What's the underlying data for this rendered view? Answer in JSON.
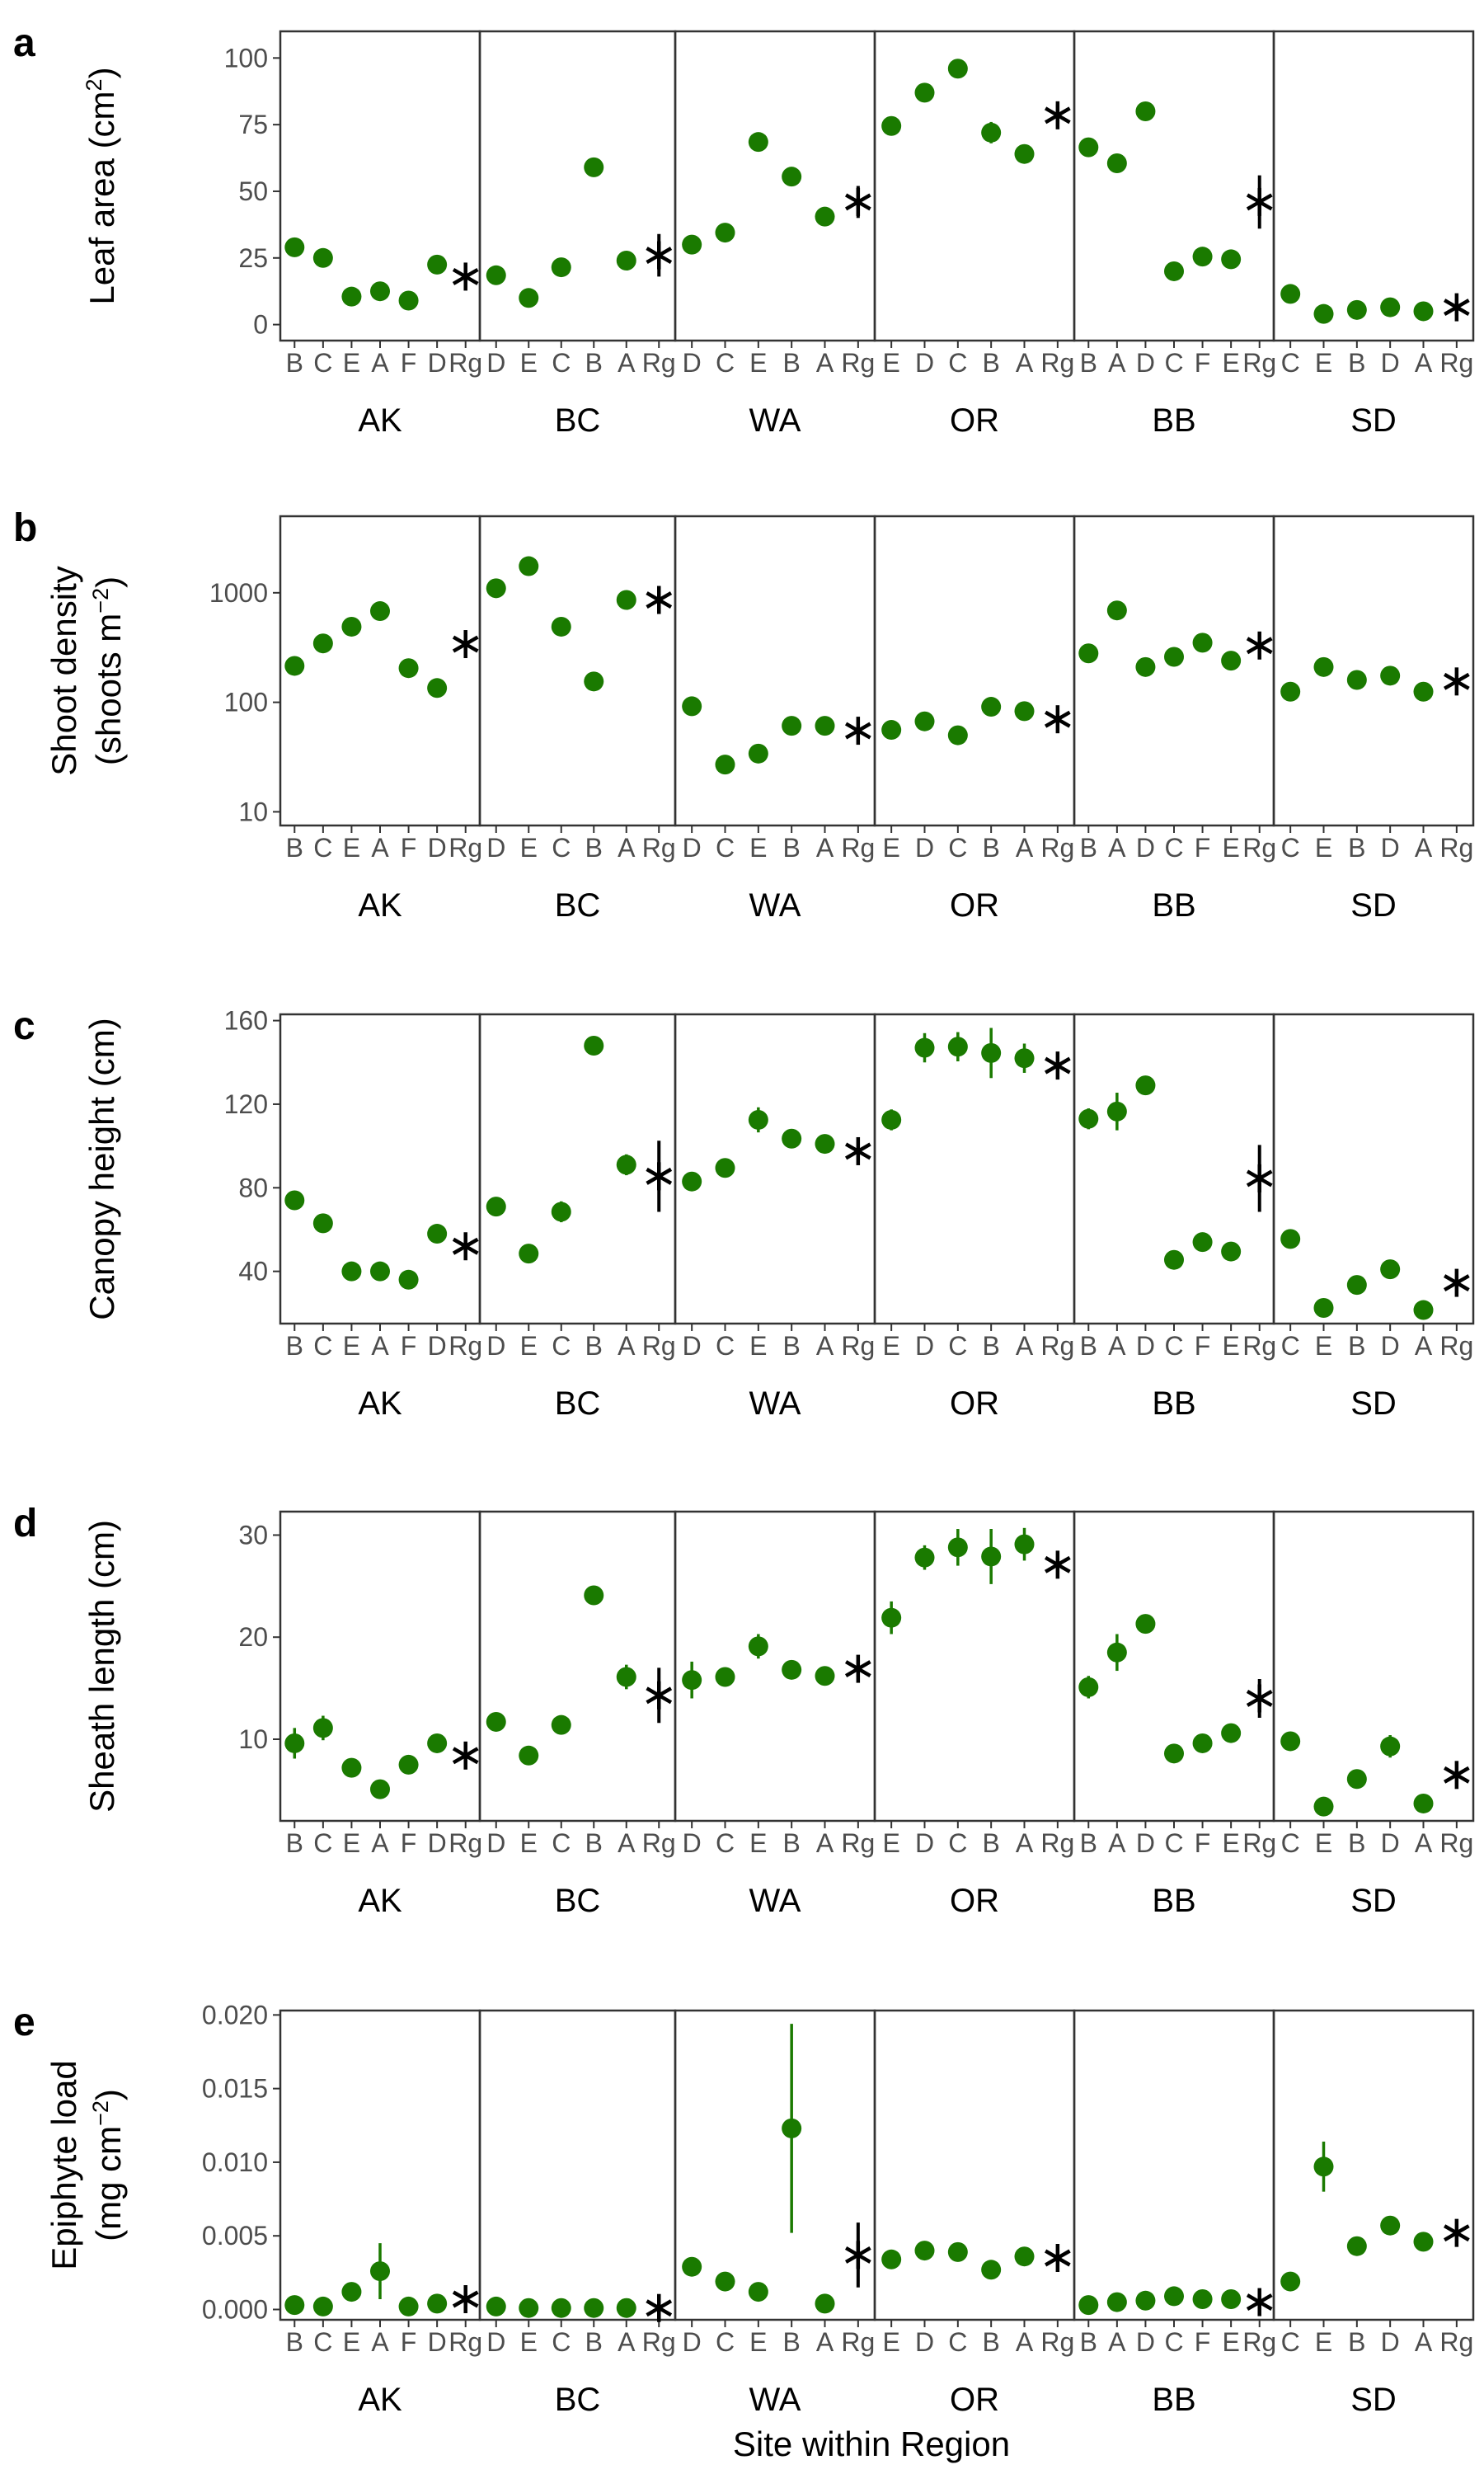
{
  "figure": {
    "xlabel": "Site within Region",
    "point_color": "#1a7a00",
    "regional_color": "#000000",
    "regions": [
      {
        "name": "AK",
        "sites": [
          "B",
          "C",
          "E",
          "A",
          "F",
          "D",
          "Rg"
        ]
      },
      {
        "name": "BC",
        "sites": [
          "D",
          "E",
          "C",
          "B",
          "A",
          "Rg"
        ]
      },
      {
        "name": "WA",
        "sites": [
          "D",
          "C",
          "E",
          "B",
          "A",
          "Rg"
        ]
      },
      {
        "name": "OR",
        "sites": [
          "E",
          "D",
          "C",
          "B",
          "A",
          "Rg"
        ]
      },
      {
        "name": "BB",
        "sites": [
          "B",
          "A",
          "D",
          "C",
          "F",
          "E",
          "Rg"
        ]
      },
      {
        "name": "SD",
        "sites": [
          "C",
          "E",
          "B",
          "D",
          "A",
          "Rg"
        ]
      }
    ]
  },
  "chart_data": [
    {
      "type": "scatter",
      "panel": "a",
      "ylabel": "Leaf area (cm²)",
      "ylabel_parts": [
        "Leaf area (cm",
        "2",
        ")"
      ],
      "yscale": "linear",
      "ylim": [
        -6,
        110
      ],
      "yticks": [
        0,
        25,
        50,
        75,
        100
      ],
      "ytick_labels": [
        "0",
        "25",
        "50",
        "75",
        "100"
      ],
      "values": [
        [
          [
            29,
            0
          ],
          [
            25,
            0
          ],
          [
            10.5,
            0
          ],
          [
            12.5,
            0
          ],
          [
            9,
            0
          ],
          [
            22.5,
            0
          ],
          [
            18,
            4
          ]
        ],
        [
          [
            18.5,
            0
          ],
          [
            10,
            0
          ],
          [
            21.5,
            0
          ],
          [
            59,
            0
          ],
          [
            24,
            0
          ],
          [
            26,
            8
          ]
        ],
        [
          [
            30,
            0
          ],
          [
            34.5,
            0
          ],
          [
            68.5,
            0
          ],
          [
            55.5,
            0
          ],
          [
            40.5,
            0
          ],
          [
            46,
            6
          ]
        ],
        [
          [
            74.5,
            0
          ],
          [
            87,
            0
          ],
          [
            96,
            0
          ],
          [
            72,
            4
          ],
          [
            64,
            0
          ],
          [
            78.5,
            4
          ]
        ],
        [
          [
            66.5,
            0
          ],
          [
            60.5,
            0
          ],
          [
            80,
            0
          ],
          [
            20,
            0
          ],
          [
            25.5,
            0
          ],
          [
            24.5,
            0
          ],
          [
            46,
            10
          ]
        ],
        [
          [
            11.5,
            0
          ],
          [
            4,
            0
          ],
          [
            5.5,
            0
          ],
          [
            6.5,
            0
          ],
          [
            5,
            0
          ],
          [
            6.5,
            3
          ]
        ]
      ]
    },
    {
      "type": "scatter",
      "panel": "b",
      "ylabel": "Shoot density (shoots m⁻²)",
      "ylabel_parts": [
        "(shoots m",
        "−2",
        ")"
      ],
      "ylabel_line1": "Shoot density",
      "yscale": "log",
      "ylim": [
        7.5,
        5000
      ],
      "yticks": [
        10,
        100,
        1000
      ],
      "ytick_labels": [
        "10",
        "100",
        "1000"
      ],
      "values": [
        [
          [
            215,
            0
          ],
          [
            345,
            0
          ],
          [
            490,
            0
          ],
          [
            680,
            0
          ],
          [
            205,
            0
          ],
          [
            135,
            0
          ],
          [
            340,
            0
          ]
        ],
        [
          [
            1100,
            0
          ],
          [
            1750,
            0
          ],
          [
            490,
            0
          ],
          [
            155,
            0
          ],
          [
            860,
            0
          ],
          [
            860,
            0
          ]
        ],
        [
          [
            92,
            0
          ],
          [
            27,
            0
          ],
          [
            34,
            0
          ],
          [
            61,
            0
          ],
          [
            61,
            0
          ],
          [
            55,
            0
          ]
        ],
        [
          [
            56,
            0
          ],
          [
            67,
            0
          ],
          [
            50,
            0
          ],
          [
            91,
            0
          ],
          [
            83,
            0
          ],
          [
            70,
            0
          ]
        ],
        [
          [
            280,
            0
          ],
          [
            690,
            0
          ],
          [
            210,
            0
          ],
          [
            260,
            0
          ],
          [
            350,
            0
          ],
          [
            240,
            0
          ],
          [
            330,
            0
          ]
        ],
        [
          [
            125,
            0
          ],
          [
            210,
            0
          ],
          [
            160,
            0
          ],
          [
            175,
            0
          ],
          [
            125,
            0
          ],
          [
            155,
            0
          ]
        ]
      ]
    },
    {
      "type": "scatter",
      "panel": "c",
      "ylabel": "Canopy height (cm)",
      "ylabel_parts": [
        "Canopy height (cm)"
      ],
      "yscale": "linear",
      "ylim": [
        15,
        163
      ],
      "yticks": [
        40,
        80,
        120,
        160
      ],
      "ytick_labels": [
        "40",
        "80",
        "120",
        "160"
      ],
      "values": [
        [
          [
            74,
            0
          ],
          [
            63,
            0
          ],
          [
            40,
            0
          ],
          [
            40,
            0
          ],
          [
            36,
            0
          ],
          [
            58,
            0
          ],
          [
            52,
            0
          ]
        ],
        [
          [
            71,
            0
          ],
          [
            48.5,
            0
          ],
          [
            68.5,
            5
          ],
          [
            148,
            0
          ],
          [
            91,
            5
          ],
          [
            85.5,
            17
          ]
        ],
        [
          [
            83,
            0
          ],
          [
            89.5,
            0
          ],
          [
            112.5,
            6
          ],
          [
            103.5,
            0
          ],
          [
            101,
            0
          ],
          [
            97.5,
            0
          ]
        ],
        [
          [
            112.5,
            5
          ],
          [
            147,
            7
          ],
          [
            147.5,
            7
          ],
          [
            144.5,
            12
          ],
          [
            142,
            7
          ],
          [
            138.5,
            0
          ]
        ],
        [
          [
            113,
            5
          ],
          [
            116.5,
            9
          ],
          [
            129,
            4
          ],
          [
            45.5,
            0
          ],
          [
            54,
            0
          ],
          [
            49.5,
            0
          ],
          [
            84.5,
            16
          ]
        ],
        [
          [
            55.5,
            0
          ],
          [
            22.5,
            0
          ],
          [
            33.5,
            0
          ],
          [
            41,
            0
          ],
          [
            21.5,
            0
          ],
          [
            34.5,
            0
          ]
        ]
      ]
    },
    {
      "type": "scatter",
      "panel": "d",
      "ylabel": "Sheath length (cm)",
      "ylabel_parts": [
        "Sheath length (cm)"
      ],
      "yscale": "linear",
      "ylim": [
        2,
        32.3
      ],
      "yticks": [
        10,
        20,
        30
      ],
      "ytick_labels": [
        "10",
        "20",
        "30"
      ],
      "values": [
        [
          [
            9.6,
            1.5
          ],
          [
            11.1,
            1.2
          ],
          [
            7.2,
            0
          ],
          [
            5.1,
            0
          ],
          [
            7.5,
            0
          ],
          [
            9.6,
            0
          ],
          [
            8.4,
            0
          ]
        ],
        [
          [
            11.7,
            0
          ],
          [
            8.4,
            0
          ],
          [
            11.4,
            0.8
          ],
          [
            24.1,
            0
          ],
          [
            16.1,
            1.2
          ],
          [
            14.3,
            2.7
          ]
        ],
        [
          [
            15.8,
            1.8
          ],
          [
            16.1,
            0
          ],
          [
            19.1,
            1.2
          ],
          [
            16.8,
            0.8
          ],
          [
            16.2,
            0
          ],
          [
            16.9,
            0.8
          ]
        ],
        [
          [
            21.9,
            1.6
          ],
          [
            27.8,
            1.2
          ],
          [
            28.8,
            1.8
          ],
          [
            27.9,
            2.7
          ],
          [
            29.1,
            1.6
          ],
          [
            27.1,
            0
          ]
        ],
        [
          [
            15.1,
            1.1
          ],
          [
            18.5,
            1.8
          ],
          [
            21.3,
            0.8
          ],
          [
            8.6,
            0
          ],
          [
            9.6,
            0
          ],
          [
            10.6,
            0
          ],
          [
            14,
            1.9
          ]
        ],
        [
          [
            9.8,
            0
          ],
          [
            3.4,
            0
          ],
          [
            6.1,
            0
          ],
          [
            9.3,
            1.1
          ],
          [
            3.7,
            0
          ],
          [
            6.5,
            0
          ]
        ]
      ]
    },
    {
      "type": "scatter",
      "panel": "e",
      "ylabel": "Epiphyte load (mg cm⁻²)",
      "ylabel_parts": [
        "(mg cm",
        "−2",
        ")"
      ],
      "ylabel_line1": "Epiphyte load",
      "yscale": "linear",
      "ylim": [
        -0.0007,
        0.0203
      ],
      "yticks": [
        0.0,
        0.005,
        0.01,
        0.015,
        0.02
      ],
      "ytick_labels": [
        "0.000",
        "0.005",
        "0.010",
        "0.015",
        "0.020"
      ],
      "values": [
        [
          [
            0.0003,
            0
          ],
          [
            0.0002,
            0
          ],
          [
            0.0012,
            0.0006
          ],
          [
            0.0026,
            0.0019
          ],
          [
            0.0002,
            0
          ],
          [
            0.0004,
            0
          ],
          [
            0.0007,
            0
          ]
        ],
        [
          [
            0.0002,
            0
          ],
          [
            0.0001,
            0
          ],
          [
            0.0001,
            0
          ],
          [
            0.0001,
            0
          ],
          [
            0.0001,
            0
          ],
          [
            0.0001,
            0
          ]
        ],
        [
          [
            0.0029,
            0
          ],
          [
            0.0019,
            0
          ],
          [
            0.0012,
            0
          ],
          [
            0.0123,
            0.0071
          ],
          [
            0.0004,
            0
          ],
          [
            0.0037,
            0.0022
          ]
        ],
        [
          [
            0.0034,
            0
          ],
          [
            0.004,
            0
          ],
          [
            0.0039,
            0
          ],
          [
            0.0027,
            0
          ],
          [
            0.0036,
            0
          ],
          [
            0.0035,
            0
          ]
        ],
        [
          [
            0.0003,
            0
          ],
          [
            0.0005,
            0
          ],
          [
            0.0006,
            0
          ],
          [
            0.0009,
            0
          ],
          [
            0.0007,
            0
          ],
          [
            0.0007,
            0
          ],
          [
            0.0005,
            0
          ]
        ],
        [
          [
            0.0019,
            0
          ],
          [
            0.0097,
            0.0017
          ],
          [
            0.0043,
            0
          ],
          [
            0.0057,
            0
          ],
          [
            0.0046,
            0
          ],
          [
            0.0052,
            0
          ]
        ]
      ]
    }
  ]
}
